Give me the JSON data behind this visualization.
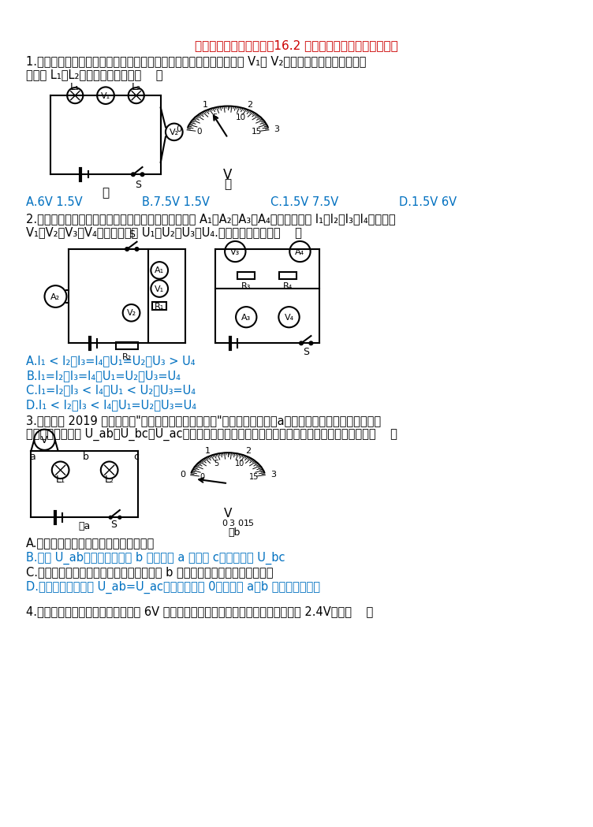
{
  "title": "九年级全一册培优训练：16.2 串并联电路中电压的规律练习",
  "title_color": "#cc0000",
  "background": "#ffffff",
  "text_color": "#000000",
  "blue_color": "#0070c0",
  "red_color": "#cc0000",
  "q1_text1": "1.小明按图甲的电路进行实验，当闭合开关用电器正常工作时，电压表 V₁和 V₂的指针完全一样，如图乙所",
  "q1_text2": "示，则 L₁、L₂两端的电压分别为（    ）",
  "q1_A": "A.6V 1.5V",
  "q1_B": "B.7.5V 1.5V",
  "q1_C": "C.1.5V 7.5V",
  "q1_D": "D.1.5V 6V",
  "q2_text1": "2.如图的电路，闭合开关，电路正常工作，图中电流表 A₁、A₂、A₃、A₄对应的示数为 I₁、I₂、I₃、I₄，电压表",
  "q2_text2": "V₁、V₂、V₃、V₄对应的示数为 U₁、U₂、U₃、U₄.下列说法正确的是（    ）",
  "q2_A": "A.I₁ < I₂，I₃=I₄，U₁=U₂，U₃ > U₄",
  "q2_B": "B.I₁=I₂，I₃=I₄，U₁=U₂，U₃=U₄",
  "q2_C": "C.I₁=I₂，I₃ < I₄，U₁ < U₂，U₃=U₄",
  "q2_D": "D.I₁ < I₂，I₃ < I₄，U₁=U₂，U₃=U₄",
  "q3_text1": "3.长沙市区 2019 年实验考试\"探究串联电路的电压关系\"，某同学按如图（a）所示连接电路。闭合开关后，",
  "q3_text2": "用电压表分别测量 U_ab、U_bc、U_ac三处电压，关于在实验过程中出现的情况，下列说法正确的是（    ）",
  "q3_A": "A.连接电路的过程中不用考虑开关的状态",
  "q3_B": "B.测出 U_ab间电压后，保持 b 不动，将 a 改接到 c，可以测出 U_bc",
  "q3_C": "C.连接好电路，闭合开关后电压表示数如图 b 所示的情况，必须将电压表校零",
  "q3_D": "D.实验时电压表示数 U_ab=U_ac，且示数不为 0，可能是 a、b 之间发生了断路",
  "q4_text": "4.如图所示的电路中，电源电压恒为 6V 开关闭合后，两灯泡都发光，电压表的示数为 2.4V，则（    ）"
}
